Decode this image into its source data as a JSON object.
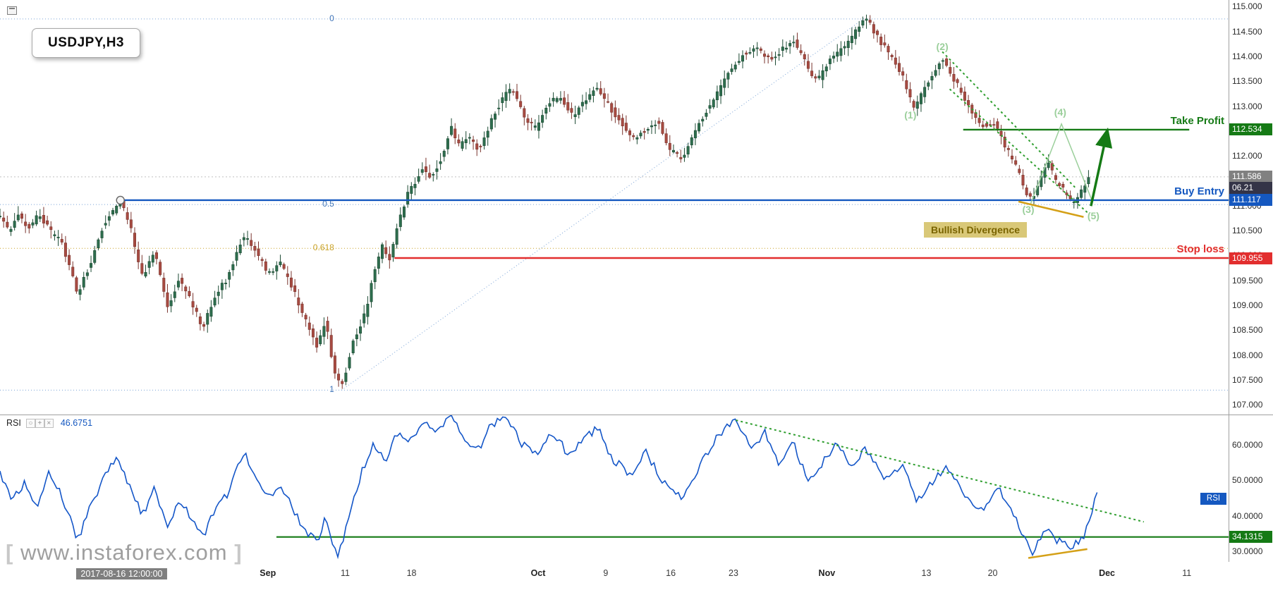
{
  "window": {
    "symbol_box": "USDJPY,H3"
  },
  "watermark": {
    "left": "[",
    "text": "www.instaforex.com",
    "right": "]"
  },
  "price_axis": {
    "ticks": [
      "115.000",
      "114.500",
      "114.000",
      "113.500",
      "113.000",
      "112.500",
      "112.000",
      "111.500",
      "111.000",
      "110.500",
      "110.000",
      "109.500",
      "109.000",
      "108.500",
      "108.000",
      "107.500",
      "107.000"
    ],
    "badges": [
      {
        "text": "112.534",
        "bg": "#157a15",
        "price": 112.534
      },
      {
        "text": "111.586",
        "bg": "#808080",
        "price": 111.586
      },
      {
        "text": "06.21",
        "bg": "#343447",
        "price": 111.37
      },
      {
        "text": "111.117",
        "bg": "#1558c0",
        "price": 111.117
      },
      {
        "text": "109.955",
        "bg": "#e22e2e",
        "price": 109.955
      }
    ]
  },
  "time_axis": {
    "labels": [
      {
        "text": "2017-08-16 12:00:00",
        "pct": 9.9,
        "highlighted": true
      },
      {
        "text": "Sep",
        "pct": 21.8,
        "bold": true
      },
      {
        "text": "11",
        "pct": 28.1
      },
      {
        "text": "18",
        "pct": 33.5
      },
      {
        "text": "Oct",
        "pct": 43.8,
        "bold": true
      },
      {
        "text": "9",
        "pct": 49.3
      },
      {
        "text": "16",
        "pct": 54.6
      },
      {
        "text": "23",
        "pct": 59.7
      },
      {
        "text": "Nov",
        "pct": 67.3,
        "bold": true
      },
      {
        "text": "13",
        "pct": 75.4
      },
      {
        "text": "20",
        "pct": 80.8
      },
      {
        "text": "Dec",
        "pct": 90.1,
        "bold": true
      },
      {
        "text": "11",
        "pct": 96.6
      }
    ]
  },
  "chart_data": [
    {
      "type": "candlestick",
      "symbol": "USDJPY",
      "timeframe": "H3",
      "y_axis": {
        "range": [
          106.81,
          115.14
        ]
      },
      "candles_end_pct": 88.6,
      "candle_colors": {
        "bull_fill": "#2e6e4e",
        "bull_stroke": "#1c4a33",
        "bear_fill": "#a84b42",
        "bear_stroke": "#7a342d"
      },
      "price_path": [
        [
          0,
          110.75
        ],
        [
          0.7,
          110.5
        ],
        [
          1.5,
          110.85
        ],
        [
          2.3,
          110.55
        ],
        [
          3.2,
          110.85
        ],
        [
          4.2,
          110.45
        ],
        [
          5,
          110.3
        ],
        [
          6.3,
          109.25
        ],
        [
          7.3,
          109.8
        ],
        [
          8.3,
          110.55
        ],
        [
          9.8,
          111.12
        ],
        [
          10.6,
          110.6
        ],
        [
          11.6,
          109.55
        ],
        [
          12.6,
          110.15
        ],
        [
          13.6,
          108.95
        ],
        [
          14.6,
          109.55
        ],
        [
          15.5,
          109.1
        ],
        [
          16.5,
          108.55
        ],
        [
          17.5,
          109.2
        ],
        [
          18.5,
          109.55
        ],
        [
          19.8,
          110.4
        ],
        [
          20.8,
          110.1
        ],
        [
          21.8,
          109.65
        ],
        [
          22.8,
          109.85
        ],
        [
          23.8,
          109.35
        ],
        [
          24.8,
          108.75
        ],
        [
          25.8,
          108.2
        ],
        [
          26.5,
          108.7
        ],
        [
          27.2,
          107.65
        ],
        [
          27.8,
          107.35
        ],
        [
          28.8,
          108.3
        ],
        [
          29.8,
          108.9
        ],
        [
          30.4,
          109.6
        ],
        [
          31.1,
          110.2
        ],
        [
          31.7,
          109.9
        ],
        [
          32.4,
          110.6
        ],
        [
          33.1,
          111.2
        ],
        [
          33.7,
          111.45
        ],
        [
          34.4,
          111.8
        ],
        [
          35.1,
          111.55
        ],
        [
          36,
          112
        ],
        [
          36.7,
          112.6
        ],
        [
          37.4,
          112.2
        ],
        [
          38.1,
          112.45
        ],
        [
          39,
          112.1
        ],
        [
          40,
          112.75
        ],
        [
          41,
          113.2
        ],
        [
          41.7,
          113.35
        ],
        [
          42.7,
          112.75
        ],
        [
          43.7,
          112.55
        ],
        [
          44.6,
          113.05
        ],
        [
          45.6,
          113.2
        ],
        [
          46.6,
          112.8
        ],
        [
          47.6,
          113.1
        ],
        [
          48.6,
          113.4
        ],
        [
          49.6,
          113
        ],
        [
          50.6,
          112.65
        ],
        [
          51.6,
          112.35
        ],
        [
          52.6,
          112.55
        ],
        [
          53.6,
          112.7
        ],
        [
          54.6,
          112.1
        ],
        [
          55.6,
          111.95
        ],
        [
          56.5,
          112.5
        ],
        [
          57.5,
          112.9
        ],
        [
          58.5,
          113.3
        ],
        [
          59.5,
          113.75
        ],
        [
          60.5,
          114.05
        ],
        [
          61.5,
          114.2
        ],
        [
          62.5,
          113.95
        ],
        [
          63.5,
          114.1
        ],
        [
          64.5,
          114.35
        ],
        [
          65.5,
          113.9
        ],
        [
          66.5,
          113.5
        ],
        [
          67.5,
          113.9
        ],
        [
          68.5,
          114.15
        ],
        [
          69.4,
          114.4
        ],
        [
          70.4,
          114.82
        ],
        [
          71.4,
          114.4
        ],
        [
          72.4,
          114.05
        ],
        [
          73.4,
          113.65
        ],
        [
          74.4,
          112.95
        ],
        [
          75.4,
          113.4
        ],
        [
          76.7,
          113.97
        ],
        [
          78,
          113.4
        ],
        [
          79,
          112.95
        ],
        [
          80,
          112.6
        ],
        [
          81,
          112.65
        ],
        [
          81.7,
          112.25
        ],
        [
          82.7,
          111.8
        ],
        [
          83.5,
          111.3
        ],
        [
          84,
          111.08
        ],
        [
          84.7,
          111.55
        ],
        [
          85.3,
          111.85
        ],
        [
          86,
          111.5
        ],
        [
          86.6,
          111.3
        ],
        [
          87.3,
          111.05
        ],
        [
          88,
          111.3
        ],
        [
          88.6,
          111.586
        ]
      ],
      "levels": [
        {
          "name": "take_profit",
          "label": "Take Profit",
          "price": 112.534,
          "color": "#157a15",
          "from_pct": 78.4,
          "to_pct": 96.8
        },
        {
          "name": "buy_entry",
          "label": "Buy Entry",
          "price": 111.117,
          "color": "#1558c0",
          "from_pct": 9.8,
          "to_pct": 100
        },
        {
          "name": "stop_loss",
          "label": "Stop loss",
          "price": 109.955,
          "color": "#e22e2e",
          "from_pct": 32.1,
          "to_pct": 100
        },
        {
          "name": "current_price",
          "label": "",
          "price": 111.586,
          "color": "#c0c0c0",
          "from_pct": 0,
          "to_pct": 100,
          "dotted": true
        }
      ],
      "fibonacci": {
        "label_right_pct": 27.2,
        "color_main": "#7aa3d6",
        "color_golden": "#c9a227",
        "levels": [
          {
            "label": "0",
            "price": 114.76,
            "golden": false
          },
          {
            "label": "0.5",
            "price": 111.03,
            "golden": false
          },
          {
            "label": "0.618",
            "price": 110.15,
            "golden": true
          },
          {
            "label": "1",
            "price": 107.3,
            "golden": false
          }
        ]
      },
      "trendline": {
        "from": [
          27.8,
          107.3
        ],
        "to": [
          70.4,
          114.78
        ],
        "color": "#7aa3d6"
      },
      "wedge_color": "#2e9e2e",
      "wedge_lines": [
        {
          "from": [
            76.7,
            114.1
          ],
          "to": [
            87.6,
            111.35
          ]
        },
        {
          "from": [
            77.3,
            113.35
          ],
          "to": [
            88.6,
            110.85
          ]
        }
      ],
      "projection_zigzag": {
        "points": [
          [
            83.9,
            111.05
          ],
          [
            86.4,
            112.65
          ],
          [
            88.9,
            111.1
          ]
        ],
        "color": "#9bcf9b"
      },
      "divergence_line": {
        "from": [
          82.9,
          111.09
        ],
        "to": [
          88.2,
          110.78
        ],
        "color": "#d4a017"
      },
      "arrow": {
        "from": [
          88.8,
          111.0
        ],
        "to": [
          90.1,
          112.48
        ],
        "color": "#157a15"
      },
      "anchor_circle": {
        "pct": 9.8,
        "price": 111.117
      },
      "wave_color": "#9bcf9b",
      "wave_labels": [
        {
          "text": "(1)",
          "pct": 74.1,
          "price": 112.82
        },
        {
          "text": "(2)",
          "pct": 76.7,
          "price": 114.19
        },
        {
          "text": "(3)",
          "pct": 83.7,
          "price": 110.92
        },
        {
          "text": "(4)",
          "pct": 86.3,
          "price": 112.87
        },
        {
          "text": "(5)",
          "pct": 89.0,
          "price": 110.79
        }
      ],
      "divergence_label": {
        "text": "Bullish Divergence",
        "pct": 75.2,
        "price": 110.68,
        "fg": "#7a6400",
        "bg": "#d9c878"
      }
    },
    {
      "type": "line",
      "name": "RSI",
      "header": {
        "title": "RSI",
        "value": "46.6751",
        "icons": [
          {
            "name": "circle-icon",
            "glyph": "○"
          },
          {
            "name": "plus-icon",
            "glyph": "+"
          },
          {
            "name": "close-icon",
            "glyph": "×"
          }
        ]
      },
      "y_axis": {
        "range": [
          27.1,
          68.7
        ],
        "ticks": [
          "60.0000",
          "50.0000",
          "40.0000",
          "30.0000"
        ]
      },
      "line_color": "#1456c8",
      "rsi_path": [
        [
          0,
          52
        ],
        [
          1,
          44
        ],
        [
          2,
          50
        ],
        [
          3,
          42
        ],
        [
          4,
          53
        ],
        [
          5,
          46
        ],
        [
          6.3,
          33
        ],
        [
          7.3,
          42
        ],
        [
          8.3,
          50
        ],
        [
          9.6,
          57
        ],
        [
          10.6,
          48
        ],
        [
          11.6,
          40
        ],
        [
          12.6,
          49
        ],
        [
          13.6,
          36
        ],
        [
          14.6,
          44
        ],
        [
          15.5,
          40
        ],
        [
          16.5,
          34
        ],
        [
          17.5,
          42
        ],
        [
          18.5,
          46
        ],
        [
          19.8,
          58
        ],
        [
          20.8,
          52
        ],
        [
          21.8,
          45
        ],
        [
          22.8,
          49
        ],
        [
          23.8,
          42
        ],
        [
          24.8,
          36
        ],
        [
          25.8,
          33
        ],
        [
          26.5,
          40
        ],
        [
          27.5,
          27.6
        ],
        [
          28.4,
          40
        ],
        [
          29.4,
          52
        ],
        [
          30.4,
          60
        ],
        [
          31.4,
          56
        ],
        [
          32.4,
          64
        ],
        [
          33.4,
          61
        ],
        [
          34.4,
          67
        ],
        [
          35.4,
          63
        ],
        [
          36.7,
          68
        ],
        [
          37.7,
          62
        ],
        [
          39,
          59
        ],
        [
          40,
          66
        ],
        [
          41.3,
          68
        ],
        [
          42.3,
          61
        ],
        [
          43.7,
          57
        ],
        [
          45,
          64
        ],
        [
          46.3,
          57
        ],
        [
          47.6,
          62
        ],
        [
          48.6,
          65
        ],
        [
          49.9,
          56
        ],
        [
          51.3,
          52
        ],
        [
          52.6,
          58
        ],
        [
          53.9,
          50
        ],
        [
          55.6,
          45
        ],
        [
          56.9,
          54
        ],
        [
          58.2,
          62
        ],
        [
          59.9,
          67
        ],
        [
          61.2,
          59
        ],
        [
          62.2,
          64
        ],
        [
          63.5,
          54
        ],
        [
          64.5,
          61
        ],
        [
          65.8,
          50
        ],
        [
          67.1,
          56
        ],
        [
          68.1,
          61
        ],
        [
          69.4,
          53
        ],
        [
          70.4,
          59
        ],
        [
          72.1,
          50
        ],
        [
          73.4,
          55
        ],
        [
          74.7,
          44
        ],
        [
          76.1,
          51
        ],
        [
          77,
          54
        ],
        [
          78.4,
          47
        ],
        [
          80,
          41
        ],
        [
          81.3,
          48
        ],
        [
          83,
          37
        ],
        [
          84,
          28.5
        ],
        [
          85,
          37
        ],
        [
          86,
          33.5
        ],
        [
          87.3,
          31
        ],
        [
          88.3,
          35
        ],
        [
          89.3,
          46.7
        ]
      ],
      "support": {
        "value": 34.1315,
        "from_pct": 22.5,
        "to_pct": 100,
        "color": "#157a15"
      },
      "support_badge": {
        "text": "34.1315",
        "bg": "#157a15",
        "value": 34.1315
      },
      "resistance_dotted": {
        "from": [
          59.9,
          67.1
        ],
        "to": [
          93.1,
          38.4
        ],
        "color": "#2e9e2e"
      },
      "divergence_line": {
        "from": [
          83.7,
          28.2
        ],
        "to": [
          88.5,
          30.7
        ],
        "color": "#d4a017"
      },
      "tag": {
        "text": "RSI",
        "bg": "#1558c0",
        "value": 45
      }
    }
  ]
}
